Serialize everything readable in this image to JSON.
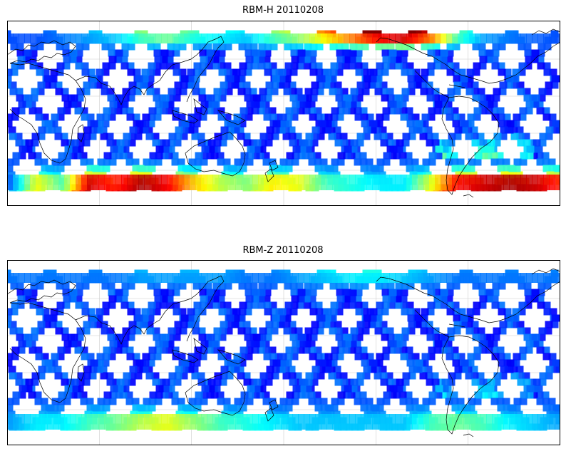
{
  "panels": [
    {
      "id": "top",
      "title": "RBM-H 20110208",
      "hot_band": [
        0.03,
        0.52,
        0.32,
        0.9,
        0.8,
        0.95,
        0.85,
        0.6,
        0.45,
        0.38,
        0.55,
        0.5,
        0.3,
        0.25,
        0.2,
        0.2,
        0.5,
        0.85,
        0.9,
        0.95,
        0.9,
        0.8
      ],
      "hot_band_north": [
        0.0,
        0.0,
        0.05,
        0.1,
        0.15,
        0.3,
        0.35,
        0.25,
        0.2,
        0.15,
        0.3,
        0.4,
        0.55,
        0.7,
        0.85,
        0.9,
        0.7,
        0.3,
        0.1,
        0.05,
        0.02,
        0.0
      ],
      "s_atlantic": 0.75
    },
    {
      "id": "bottom",
      "title": "RBM-Z 20110208",
      "hot_band": [
        0.1,
        0.2,
        0.2,
        0.3,
        0.35,
        0.45,
        0.5,
        0.4,
        0.3,
        0.25,
        0.2,
        0.15,
        0.15,
        0.15,
        0.15,
        0.15,
        0.3,
        0.35,
        0.3,
        0.2,
        0.15,
        0.1
      ],
      "hot_band_north": [
        0.05,
        0.05,
        0.05,
        0.05,
        0.05,
        0.1,
        0.1,
        0.1,
        0.1,
        0.05,
        0.05,
        0.1,
        0.15,
        0.2,
        0.2,
        0.15,
        0.1,
        0.05,
        0.05,
        0.05,
        0.05,
        0.05
      ],
      "s_atlantic": 0.5
    }
  ],
  "colors": {
    "track_base": "#6a6aee",
    "coast": "#000000",
    "grid": "#cccccc",
    "frame": "#000000"
  }
}
